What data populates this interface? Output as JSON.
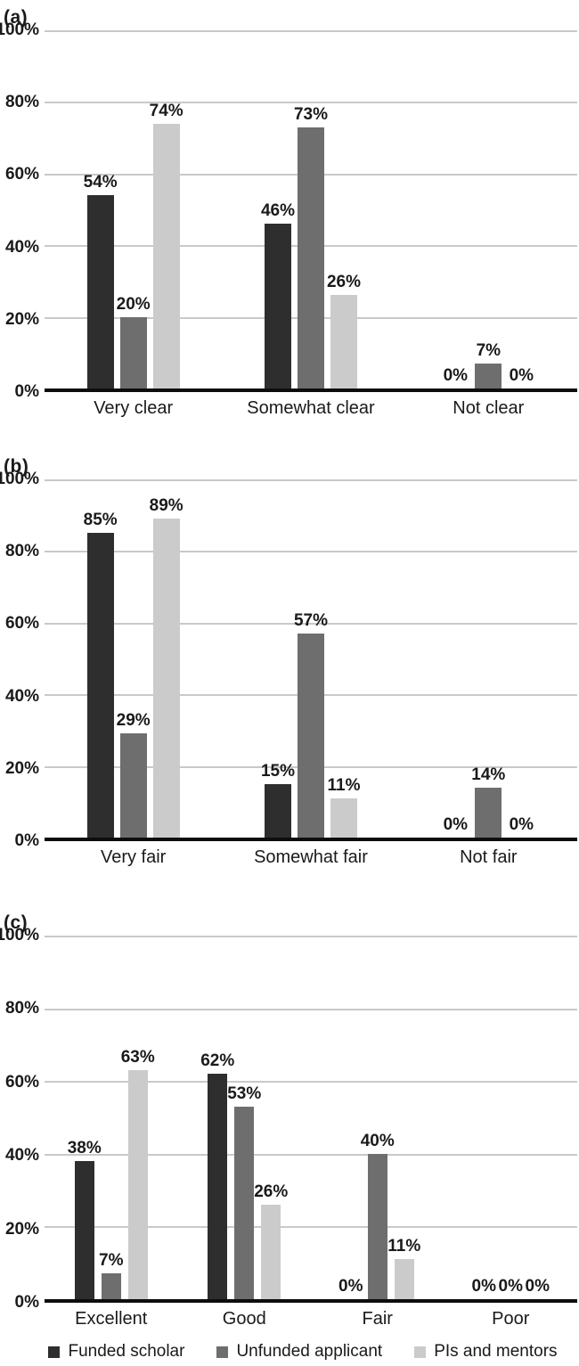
{
  "colors": {
    "funded_scholar": "#2e2e2e",
    "unfunded_applicant": "#6e6e6e",
    "pis_and_mentors": "#cbcbcb",
    "gridline": "#c9c9c9",
    "axis": "#0d0d0d"
  },
  "series_colors": [
    "#2e2e2e",
    "#6e6e6e",
    "#cbcbcb"
  ],
  "y_ticks": [
    "100%",
    "80%",
    "60%",
    "40%",
    "20%",
    "0%"
  ],
  "legend": [
    {
      "label": "Funded scholar",
      "color": "#2e2e2e"
    },
    {
      "label": "Unfunded applicant",
      "color": "#6e6e6e"
    },
    {
      "label": "PIs and mentors",
      "color": "#cbcbcb"
    }
  ],
  "chart_data": [
    {
      "type": "bar",
      "panel_label": "(a)",
      "categories": [
        "Very clear",
        "Somewhat clear",
        "Not clear"
      ],
      "series": [
        {
          "name": "Funded scholar",
          "values": [
            54,
            46,
            0
          ],
          "labels": [
            "54%",
            "46%",
            "0%"
          ]
        },
        {
          "name": "Unfunded applicant",
          "values": [
            20,
            73,
            7
          ],
          "labels": [
            "20%",
            "73%",
            "7%"
          ]
        },
        {
          "name": "PIs and mentors",
          "values": [
            74,
            26,
            0
          ],
          "labels": [
            "74%",
            "26%",
            "0%"
          ]
        }
      ],
      "ylabel": "",
      "xlabel": "",
      "ylim": [
        0,
        100
      ],
      "grid": true,
      "legend_position": "bottom-shared"
    },
    {
      "type": "bar",
      "panel_label": "(b)",
      "categories": [
        "Very fair",
        "Somewhat fair",
        "Not fair"
      ],
      "series": [
        {
          "name": "Funded scholar",
          "values": [
            85,
            15,
            0
          ],
          "labels": [
            "85%",
            "15%",
            "0%"
          ]
        },
        {
          "name": "Unfunded applicant",
          "values": [
            29,
            57,
            14
          ],
          "labels": [
            "29%",
            "57%",
            "14%"
          ]
        },
        {
          "name": "PIs and mentors",
          "values": [
            89,
            11,
            0
          ],
          "labels": [
            "89%",
            "11%",
            "0%"
          ]
        }
      ],
      "ylabel": "",
      "xlabel": "",
      "ylim": [
        0,
        100
      ],
      "grid": true,
      "legend_position": "bottom-shared"
    },
    {
      "type": "bar",
      "panel_label": "(c)",
      "categories": [
        "Excellent",
        "Good",
        "Fair",
        "Poor"
      ],
      "series": [
        {
          "name": "Funded scholar",
          "values": [
            38,
            62,
            0,
            0
          ],
          "labels": [
            "38%",
            "62%",
            "0%",
            "0%"
          ]
        },
        {
          "name": "Unfunded applicant",
          "values": [
            7,
            53,
            40,
            0
          ],
          "labels": [
            "7%",
            "53%",
            "40%",
            "0%"
          ]
        },
        {
          "name": "PIs and mentors",
          "values": [
            63,
            26,
            11,
            0
          ],
          "labels": [
            "63%",
            "26%",
            "11%",
            "0%"
          ]
        }
      ],
      "ylabel": "",
      "xlabel": "",
      "ylim": [
        0,
        100
      ],
      "grid": true,
      "legend_position": "bottom"
    }
  ]
}
